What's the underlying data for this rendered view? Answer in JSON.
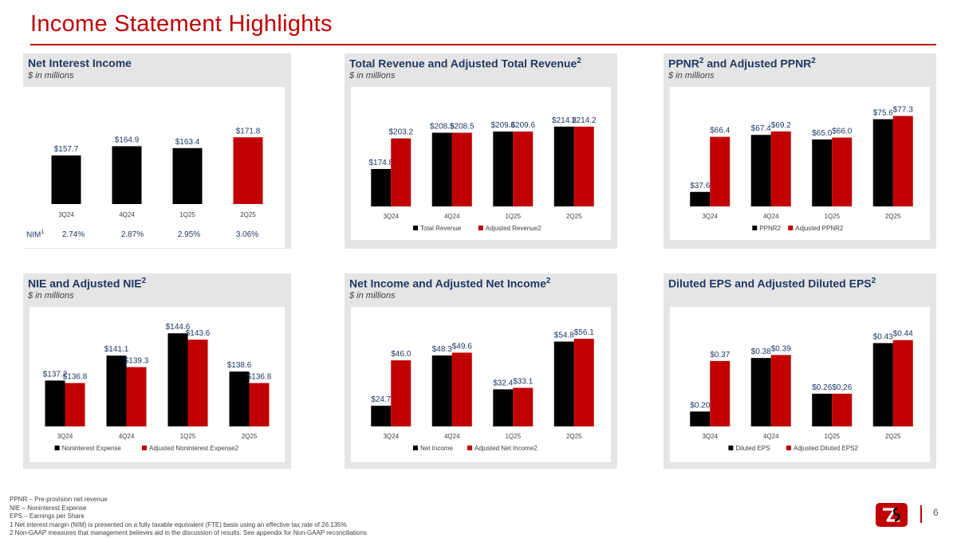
{
  "page": {
    "title": "Income Statement Highlights",
    "page_number": "6"
  },
  "colors": {
    "black": "#000000",
    "red": "#c00000",
    "label": "#1f3864"
  },
  "panels": [
    {
      "title": "Net Interest Income",
      "sup": "",
      "subtitle": "$ in millions"
    },
    {
      "title": "Total Revenue and Adjusted Total Revenue",
      "sup": "2",
      "subtitle": "$ in millions"
    },
    {
      "title": "PPNR",
      "sup": "2",
      "title_rest": " and Adjusted PPNR",
      "sup2": "2",
      "subtitle": "$ in millions"
    },
    {
      "title": "NIE and Adjusted NIE",
      "sup": "2",
      "subtitle": "$ in millions"
    },
    {
      "title": "Net Income and Adjusted Net Income",
      "sup": "2",
      "subtitle": "$ in millions"
    },
    {
      "title": "Diluted EPS and Adjusted Diluted EPS",
      "sup": "2",
      "subtitle": ""
    }
  ],
  "nim": {
    "label": "NIM",
    "label_sup": "1",
    "values": [
      "2.74%",
      "2.87%",
      "2.95%",
      "3.06%"
    ]
  },
  "chart_data": [
    {
      "type": "bar",
      "title": "Net Interest Income",
      "categories": [
        "3Q24",
        "4Q24",
        "1Q25",
        "2Q25"
      ],
      "series": [
        {
          "name": "Net Interest Income",
          "values": [
            157.7,
            164.9,
            163.4,
            171.8
          ]
        }
      ],
      "labels": [
        "$157.7",
        "$164.9",
        "$163.4",
        "$171.8"
      ],
      "bar_colors": [
        "#000000",
        "#000000",
        "#000000",
        "#c00000"
      ],
      "ylim": [
        120,
        180
      ],
      "legend": []
    },
    {
      "type": "bar",
      "title": "Total Revenue and Adjusted Total Revenue",
      "categories": [
        "3Q24",
        "4Q24",
        "1Q25",
        "2Q25"
      ],
      "series": [
        {
          "name": "Total Revenue",
          "values": [
            174.8,
            208.5,
            209.6,
            214.2
          ],
          "labels": [
            "$174.8",
            "$208.5",
            "$209.6",
            "$214.2"
          ]
        },
        {
          "name": "Adjusted Revenue2",
          "values": [
            203.2,
            208.5,
            209.6,
            214.2
          ],
          "labels": [
            "$203.2",
            "$208.5",
            "$209.6",
            "$214.2"
          ]
        }
      ],
      "ylim": [
        140,
        220
      ],
      "legend": [
        "Total Revenue",
        "Adjusted Revenue2"
      ]
    },
    {
      "type": "bar",
      "title": "PPNR and Adjusted PPNR",
      "categories": [
        "3Q24",
        "4Q24",
        "1Q25",
        "2Q25"
      ],
      "series": [
        {
          "name": "PPNR2",
          "values": [
            37.6,
            67.4,
            65.0,
            75.6
          ],
          "labels": [
            "$37.6",
            "$67.4",
            "$65.0",
            "$75.6"
          ]
        },
        {
          "name": "Adjusted PPNR2",
          "values": [
            66.4,
            69.2,
            66.0,
            77.3
          ],
          "labels": [
            "$66.4",
            "$69.2",
            "$66.0",
            "$77.3"
          ]
        }
      ],
      "ylim": [
        30,
        80
      ],
      "legend": [
        "PPNR2",
        "Adjusted PPNR2"
      ]
    },
    {
      "type": "bar",
      "title": "NIE and Adjusted NIE",
      "categories": [
        "3Q24",
        "4Q24",
        "1Q25",
        "2Q25"
      ],
      "series": [
        {
          "name": "Noninterest Expense",
          "values": [
            137.2,
            141.1,
            144.6,
            138.6
          ],
          "labels": [
            "$137.2",
            "$141.1",
            "$144.6",
            "$138.6"
          ]
        },
        {
          "name": "Adjusted Noninterest Expense2",
          "values": [
            136.8,
            139.3,
            143.6,
            136.8
          ],
          "labels": [
            "$136.8",
            "$139.3",
            "$143.6",
            "$136.8"
          ]
        }
      ],
      "ylim": [
        130,
        146
      ],
      "legend": [
        "Noninterest Expense",
        "Adjusted Noninterest Expense2"
      ]
    },
    {
      "type": "bar",
      "title": "Net Income and Adjusted Net Income",
      "categories": [
        "3Q24",
        "4Q24",
        "1Q25",
        "2Q25"
      ],
      "series": [
        {
          "name": "Net Income",
          "values": [
            24.7,
            48.3,
            32.4,
            54.8
          ],
          "labels": [
            "$24.7",
            "$48.3",
            "$32.4",
            "$54.8"
          ]
        },
        {
          "name": "Adjusted Net Income2",
          "values": [
            46.0,
            49.6,
            33.1,
            56.1
          ],
          "labels": [
            "$46.0",
            "$49.6",
            "$33.1",
            "$56.1"
          ]
        }
      ],
      "ylim": [
        15,
        58
      ],
      "legend": [
        "Net Income",
        "Adjusted Net Income2"
      ]
    },
    {
      "type": "bar",
      "title": "Diluted EPS and Adjusted Diluted EPS",
      "categories": [
        "3Q24",
        "4Q24",
        "1Q25",
        "2Q25"
      ],
      "series": [
        {
          "name": "Diluted EPS",
          "values": [
            0.2,
            0.38,
            0.26,
            0.43
          ],
          "labels": [
            "$0.20",
            "$0.38",
            "$0.26",
            "$0.43"
          ]
        },
        {
          "name": "Adjusted Diluted EPS2",
          "values": [
            0.37,
            0.39,
            0.26,
            0.44
          ],
          "labels": [
            "$0.37",
            "$0.39",
            "$0.26",
            "$0.44"
          ]
        }
      ],
      "ylim": [
        0.15,
        0.45
      ],
      "legend": [
        "Diluted EPS",
        "Adjusted Diluted EPS2"
      ]
    }
  ],
  "footer": [
    "PPNR – Pre-provision net revenue",
    "NIE – Noninterest Expense",
    "EPS – Earnings per Share",
    "1   Net interest margin (NIM) is presented on a fully taxable equivalent (FTE) basis using an effective tax rate of 26.135%",
    "2   Non-GAAP measures that management believes aid in the discussion of results. See appendix for Non-GAAP reconciliations"
  ]
}
